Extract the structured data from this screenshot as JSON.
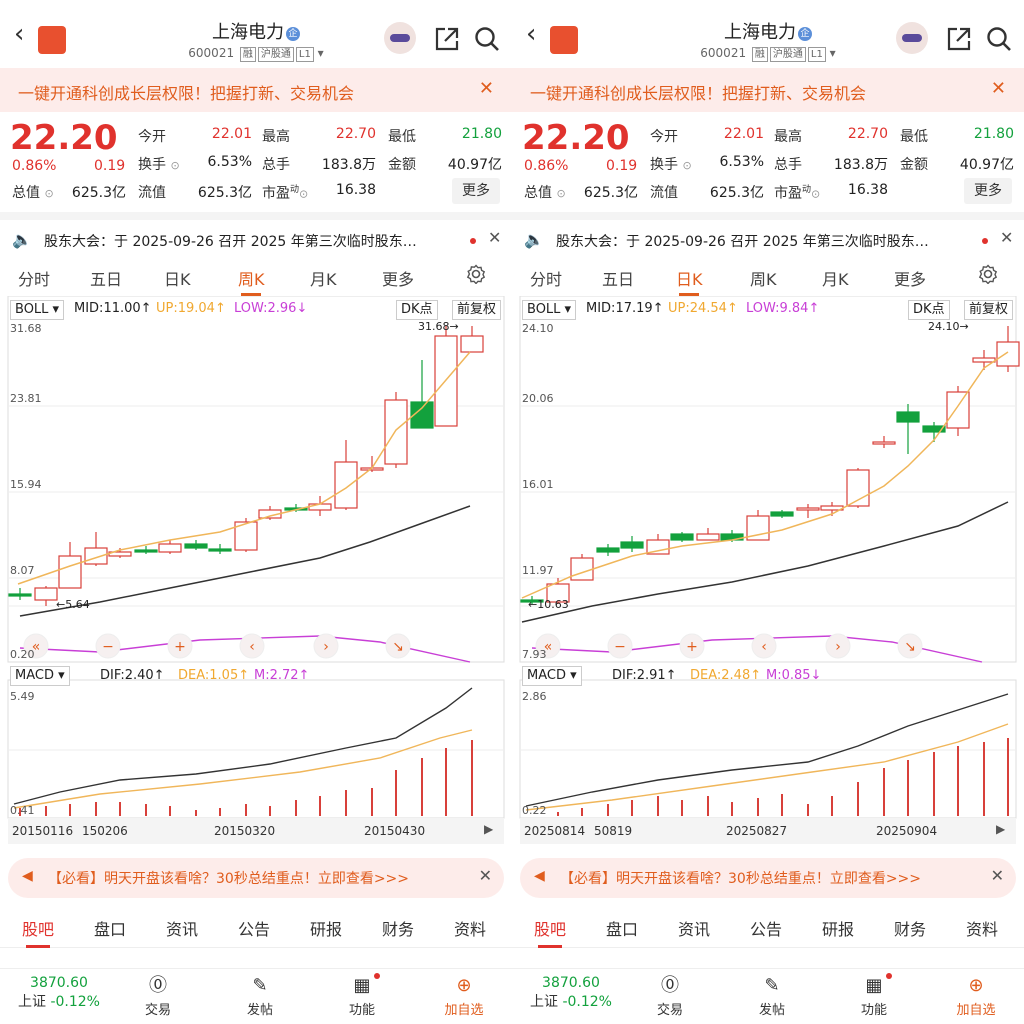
{
  "stock": {
    "name": "上海电力",
    "tag": "企",
    "code": "600021",
    "badge1": "融",
    "badge2": "沪股通",
    "badge3": "L1",
    "logo": "东方财富"
  },
  "banner": "一键开通科创成长层权限！把握打新、交易机会",
  "quote": {
    "price": "22.20",
    "pct": "0.86%",
    "chg": "0.19",
    "open_l": "今开",
    "open": "22.01",
    "high_l": "最高",
    "high": "22.70",
    "low_l": "最低",
    "low": "21.80",
    "turn_l": "换手",
    "turn": "6.53%",
    "vol_l": "总手",
    "vol": "183.8万",
    "amt_l": "金额",
    "amt": "40.97亿",
    "cap_l": "总值",
    "cap": "625.3亿",
    "flt_l": "流值",
    "flt": "625.3亿",
    "pe_l": "市盈",
    "pe_sup": "动",
    "pe": "16.38",
    "more": "更多"
  },
  "notice": "股东大会：于 2025-09-26 召开 2025 年第三次临时股东…",
  "tabs": [
    "分时",
    "五日",
    "日K",
    "周K",
    "月K",
    "更多"
  ],
  "left": {
    "active_tab": 3,
    "boll": {
      "label": "BOLL",
      "mid": "MID:11.00",
      "up": "UP:19.04",
      "low": "LOW:2.96",
      "mid_arrow": "↑",
      "up_arrow": "↑",
      "low_arrow": "↓"
    },
    "dk": "DK点",
    "fq": "前复权",
    "axis": [
      "31.68",
      "23.81",
      "15.94",
      "8.07",
      "0.20"
    ],
    "hi_label": "31.68→",
    "lo_label": "←5.64",
    "macd": {
      "label": "MACD",
      "dif": "DIF:2.40",
      "dea": "DEA:1.05",
      "m": "M:2.72",
      "dif_arrow": "↑",
      "dea_arrow": "↑",
      "m_arrow": "↑"
    },
    "macd_axis": [
      "5.49",
      "0.41"
    ],
    "dates": [
      "20150116",
      "150206",
      "20150320",
      "20150430"
    ]
  },
  "right": {
    "active_tab": 2,
    "boll": {
      "label": "BOLL",
      "mid": "MID:17.19",
      "up": "UP:24.54",
      "low": "LOW:9.84",
      "mid_arrow": "↑",
      "up_arrow": "↑",
      "low_arrow": "↑"
    },
    "dk": "DK点",
    "fq": "前复权",
    "axis": [
      "24.10",
      "20.06",
      "16.01",
      "11.97",
      "7.93"
    ],
    "hi_label": "24.10→",
    "lo_label": "←10.63",
    "macd": {
      "label": "MACD",
      "dif": "DIF:2.91",
      "dea": "DEA:2.48",
      "m": "M:0.85",
      "dif_arrow": "↑",
      "dea_arrow": "↑",
      "m_arrow": "↓"
    },
    "macd_axis": [
      "2.86",
      "0.22"
    ],
    "dates": [
      "20250814",
      "50819",
      "20250827",
      "20250904"
    ]
  },
  "ad": {
    "tag": "【必看】",
    "text": "明天开盘该看啥？30秒总结重点！立即查看>>>"
  },
  "tabs2": [
    "股吧",
    "盘口",
    "资讯",
    "公告",
    "研报",
    "财务",
    "资料"
  ],
  "index": {
    "value": "3870.60",
    "name": "上证",
    "pct": "-0.12%"
  },
  "nav": [
    "交易",
    "发帖",
    "功能",
    "加自选"
  ],
  "colors": {
    "up": "#e0322d",
    "down": "#13a13d",
    "accent": "#e05d1e",
    "mid": "#f0b65a",
    "low": "#333333",
    "boll_low": "#c83fd6"
  }
}
